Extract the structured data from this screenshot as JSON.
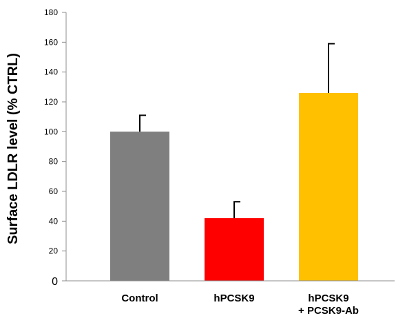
{
  "chart_data": {
    "type": "bar",
    "title": "",
    "xlabel": "",
    "ylabel": "Surface LDLR level (% CTRL)",
    "ylim": [
      0,
      180
    ],
    "yticks": [
      0,
      20,
      40,
      60,
      80,
      100,
      120,
      140,
      160,
      180
    ],
    "grid": false,
    "legend": "none",
    "categories": [
      {
        "lines": [
          "Control"
        ]
      },
      {
        "lines": [
          "hPCSK9"
        ]
      },
      {
        "lines": [
          "hPCSK9",
          "+ PCSK9-Ab"
        ]
      }
    ],
    "values": [
      100,
      42,
      126
    ],
    "errors": [
      11,
      11,
      33
    ],
    "colors": [
      "#7f7f7f",
      "#ff0000",
      "#ffc000"
    ]
  }
}
